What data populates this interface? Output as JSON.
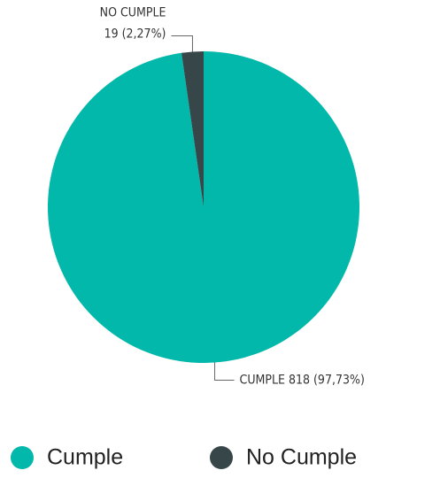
{
  "chart_data": {
    "type": "pie",
    "categories": [
      "Cumple",
      "No Cumple"
    ],
    "values": [
      818,
      19
    ],
    "colors": [
      "#01b8aa",
      "#374649"
    ],
    "value_labels": [
      [
        "CUMPLE 818 (97,73%)"
      ],
      [
        "NO CUMPLE",
        "19 (2,27%)"
      ]
    ],
    "legend": "bottom"
  }
}
